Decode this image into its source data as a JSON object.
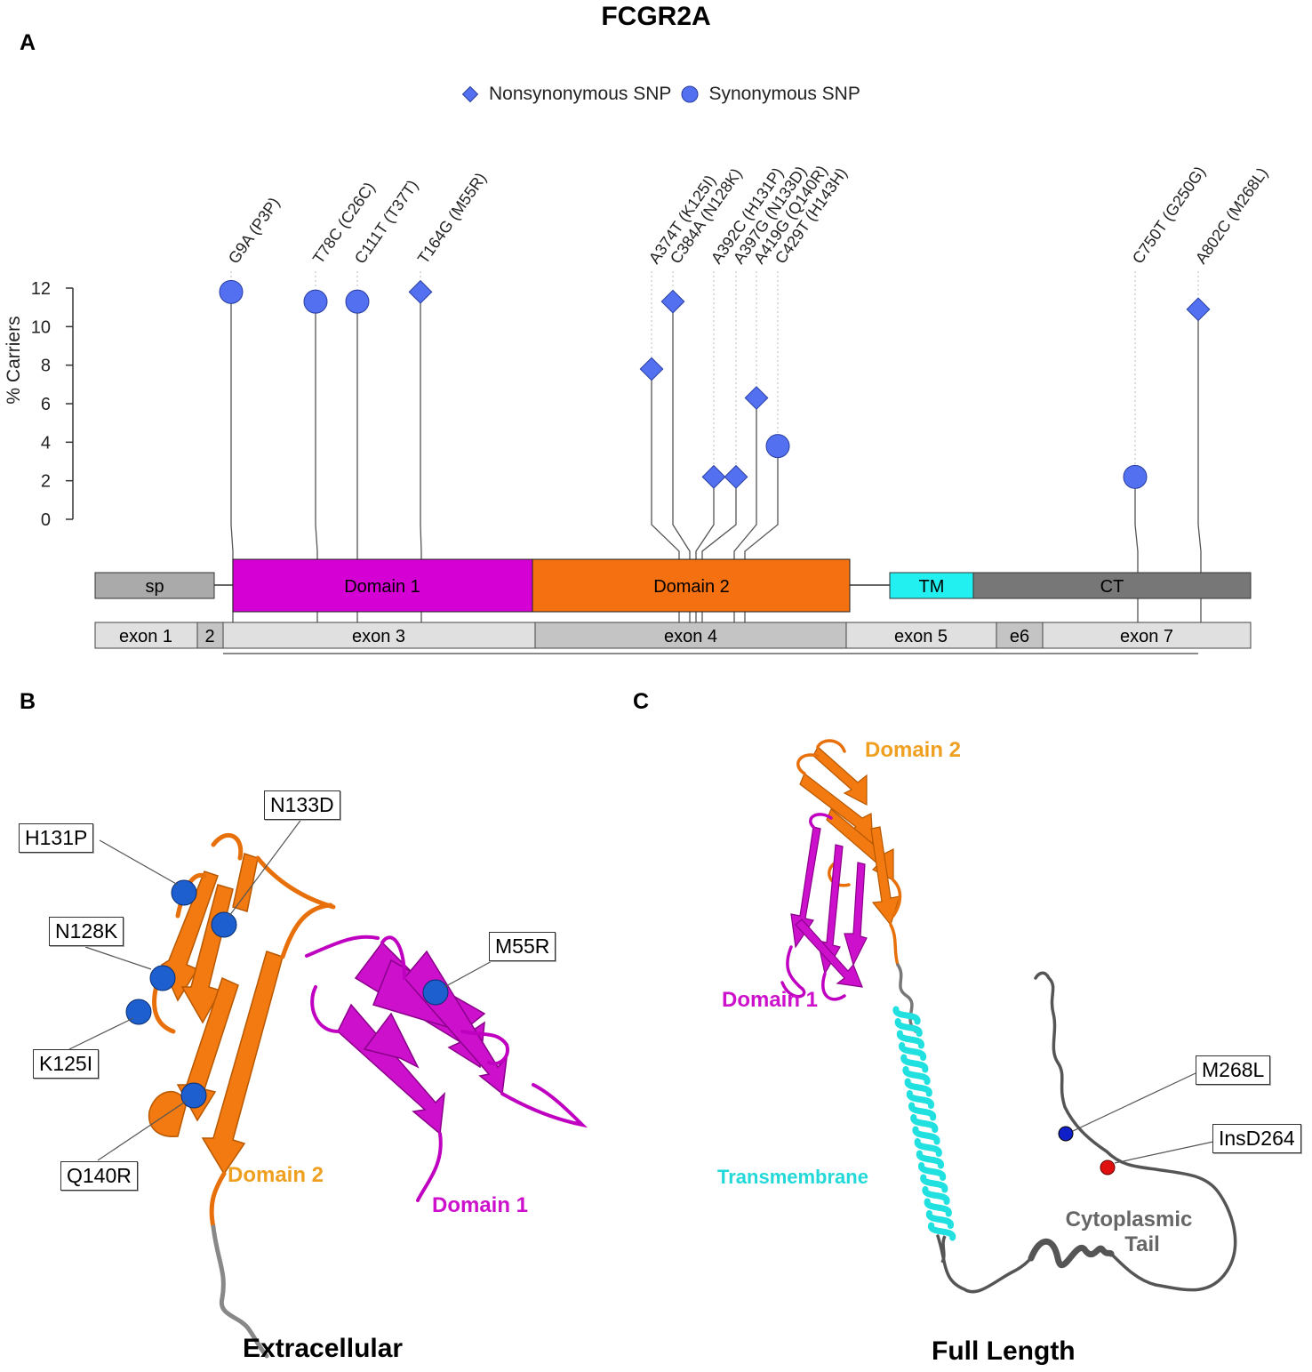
{
  "title": "FCGR2A",
  "panels": {
    "a": "A",
    "b": "B",
    "c": "C"
  },
  "legend": {
    "nonsyn": "Nonsynonymous SNP",
    "syn": "Synonymous SNP"
  },
  "colors": {
    "marker": "#5270f0",
    "domain1": "#d400d4",
    "domain2": "#f57010",
    "tm": "#22f0f0",
    "ct": "#777777",
    "sp": "#aaaaaa"
  },
  "y_axis": {
    "label": "% Carriers",
    "ticks": [
      "0",
      "2",
      "4",
      "6",
      "8",
      "10",
      "12"
    ]
  },
  "chart_data": {
    "type": "scatter",
    "ylabel": "% Carriers",
    "ylim": [
      0,
      12
    ],
    "points": [
      {
        "label": "G9A (P3P)",
        "kind": "synonymous",
        "value": 11.8
      },
      {
        "label": "T78C (C26C)",
        "kind": "synonymous",
        "value": 11.3
      },
      {
        "label": "C111T (T37T)",
        "kind": "synonymous",
        "value": 11.3
      },
      {
        "label": "T164G (M55R)",
        "kind": "nonsynonymous",
        "value": 11.8
      },
      {
        "label": "A374T (K125I)",
        "kind": "nonsynonymous",
        "value": 7.8
      },
      {
        "label": "C384A (N128K)",
        "kind": "nonsynonymous",
        "value": 11.3
      },
      {
        "label": "A392C (H131P)",
        "kind": "nonsynonymous",
        "value": 2.2
      },
      {
        "label": "A397G (N133D)",
        "kind": "nonsynonymous",
        "value": 2.2
      },
      {
        "label": "A419G (Q140R)",
        "kind": "nonsynonymous",
        "value": 6.3
      },
      {
        "label": "C429T (H143H)",
        "kind": "synonymous",
        "value": 3.8
      },
      {
        "label": "C750T (G250G)",
        "kind": "synonymous",
        "value": 2.2
      },
      {
        "label": "A802C (M268L)",
        "kind": "nonsynonymous",
        "value": 10.9
      }
    ]
  },
  "protein_domains": [
    "sp",
    "Domain 1",
    "Domain 2",
    "TM",
    "CT"
  ],
  "exons": [
    "exon 1",
    "2",
    "exon 3",
    "exon 4",
    "exon 5",
    "e6",
    "exon 7"
  ],
  "panel_b": {
    "labels": [
      "H131P",
      "N133D",
      "N128K",
      "K125I",
      "Q140R",
      "M55R"
    ],
    "domain2": "Domain 2",
    "domain1": "Domain 1",
    "caption": "Extracellular"
  },
  "panel_c": {
    "domain2": "Domain 2",
    "domain1": "Domain 1",
    "transmembrane": "Transmembrane",
    "cyto_line1": "Cytoplasmic",
    "cyto_line2": "Tail",
    "labels": [
      "M268L",
      "InsD264"
    ],
    "caption": "Full Length"
  }
}
